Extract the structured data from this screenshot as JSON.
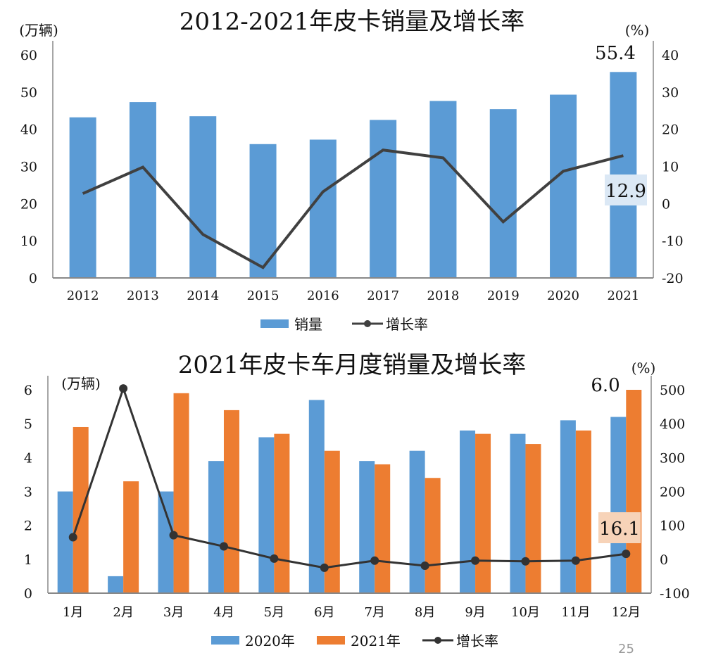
{
  "page_number": "25",
  "chart_data": [
    {
      "type": "bar+line",
      "title": "2012-2021年皮卡销量及增长率",
      "ylabel_left": "(万辆)",
      "ylabel_right": "(%)",
      "categories": [
        "2012",
        "2013",
        "2014",
        "2015",
        "2016",
        "2017",
        "2018",
        "2019",
        "2020",
        "2021"
      ],
      "series": [
        {
          "name": "销量",
          "type": "bar",
          "axis": "left",
          "color": "#5b9bd5",
          "values": [
            43.2,
            47.3,
            43.5,
            36.0,
            37.2,
            42.5,
            47.6,
            45.4,
            49.3,
            55.4
          ]
        },
        {
          "name": "增长率",
          "type": "line",
          "axis": "right",
          "color": "#404040",
          "values": [
            2.7,
            9.8,
            -8.3,
            -17.2,
            3.2,
            14.4,
            12.3,
            -4.9,
            8.7,
            12.9
          ]
        }
      ],
      "data_labels": [
        "55.4",
        "12.9"
      ],
      "ylim_left": [
        0,
        60
      ],
      "yticks_left": [
        "0",
        "10",
        "20",
        "30",
        "40",
        "50",
        "60"
      ],
      "ylim_right": [
        -20,
        40
      ],
      "yticks_right": [
        "-20",
        "-10",
        "0",
        "10",
        "20",
        "30",
        "40"
      ],
      "legend_position": "bottom",
      "grid": false
    },
    {
      "type": "bar+line",
      "title": "2021年皮卡车月度销量及增长率",
      "ylabel_left": "(万辆)",
      "ylabel_right": "(%)",
      "categories": [
        "1月",
        "2月",
        "3月",
        "4月",
        "5月",
        "6月",
        "7月",
        "8月",
        "9月",
        "10月",
        "11月",
        "12月"
      ],
      "series": [
        {
          "name": "2020年",
          "type": "bar",
          "axis": "left",
          "color": "#5b9bd5",
          "values": [
            3.0,
            0.5,
            3.0,
            3.9,
            4.6,
            5.7,
            3.9,
            4.2,
            4.8,
            4.7,
            5.1,
            5.2
          ]
        },
        {
          "name": "2021年",
          "type": "bar",
          "axis": "left",
          "color": "#ed7d31",
          "values": [
            4.9,
            3.3,
            5.9,
            5.4,
            4.7,
            4.2,
            3.8,
            3.4,
            4.7,
            4.4,
            4.8,
            6.0
          ]
        },
        {
          "name": "增长率",
          "type": "line",
          "axis": "right",
          "color": "#333333",
          "values": [
            65,
            504,
            71,
            38,
            2,
            -25,
            -4,
            -19,
            -4,
            -6,
            -4,
            16.1
          ]
        }
      ],
      "data_labels": [
        "6.0",
        "16.1"
      ],
      "ylim_left": [
        0,
        6
      ],
      "yticks_left": [
        "0",
        "1",
        "2",
        "3",
        "4",
        "5",
        "6"
      ],
      "ylim_right": [
        -100,
        500
      ],
      "yticks_right": [
        "-100",
        "0",
        "100",
        "200",
        "300",
        "400",
        "500"
      ],
      "legend_position": "bottom",
      "grid": false
    }
  ]
}
